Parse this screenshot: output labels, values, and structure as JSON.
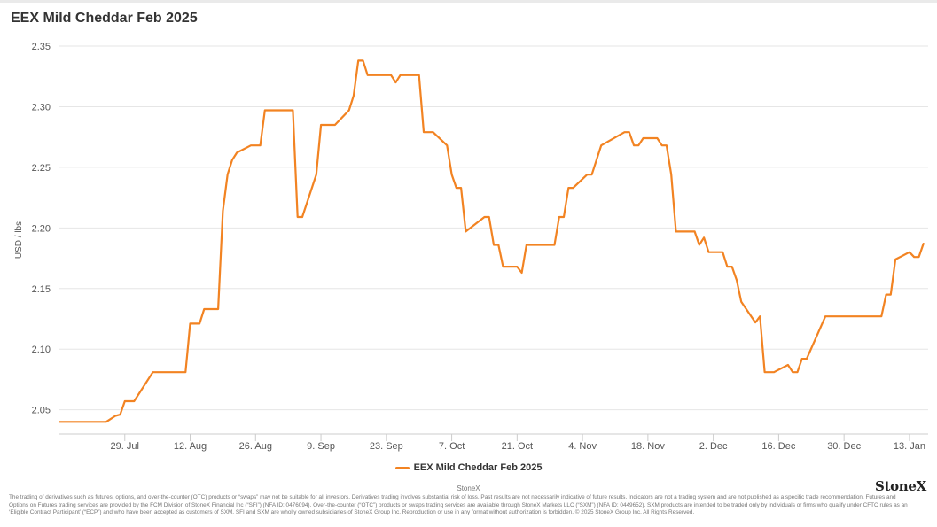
{
  "header": {
    "title": "EEX Mild Cheddar Feb 2025"
  },
  "chart_data": {
    "type": "line",
    "title": "EEX Mild Cheddar Feb 2025",
    "ylabel": "USD / lbs",
    "xlabel": "",
    "ylim": [
      2.03,
      2.35
    ],
    "xlim": [
      "2024-07-15",
      "2025-01-17"
    ],
    "y_ticks": [
      2.05,
      2.1,
      2.15,
      2.2,
      2.25,
      2.3,
      2.35
    ],
    "x_ticks": [
      {
        "date": "2024-07-29",
        "label": "29. Jul"
      },
      {
        "date": "2024-08-12",
        "label": "12. Aug"
      },
      {
        "date": "2024-08-26",
        "label": "26. Aug"
      },
      {
        "date": "2024-09-09",
        "label": "9. Sep"
      },
      {
        "date": "2024-09-23",
        "label": "23. Sep"
      },
      {
        "date": "2024-10-07",
        "label": "7. Oct"
      },
      {
        "date": "2024-10-21",
        "label": "21. Oct"
      },
      {
        "date": "2024-11-04",
        "label": "4. Nov"
      },
      {
        "date": "2024-11-18",
        "label": "18. Nov"
      },
      {
        "date": "2024-12-02",
        "label": "2. Dec"
      },
      {
        "date": "2024-12-16",
        "label": "16. Dec"
      },
      {
        "date": "2024-12-30",
        "label": "30. Dec"
      },
      {
        "date": "2025-01-13",
        "label": "13. Jan"
      }
    ],
    "grid": true,
    "legend": "bottom-center",
    "series": [
      {
        "name": "EEX Mild Cheddar Feb 2025",
        "color": "#f28322",
        "points": [
          [
            "2024-07-15",
            2.04
          ],
          [
            "2024-07-25",
            2.04
          ],
          [
            "2024-07-27",
            2.045
          ],
          [
            "2024-07-28",
            2.046
          ],
          [
            "2024-07-29",
            2.057
          ],
          [
            "2024-07-30",
            2.057
          ],
          [
            "2024-07-31",
            2.057
          ],
          [
            "2024-08-04",
            2.081
          ],
          [
            "2024-08-11",
            2.081
          ],
          [
            "2024-08-12",
            2.121
          ],
          [
            "2024-08-14",
            2.121
          ],
          [
            "2024-08-15",
            2.133
          ],
          [
            "2024-08-18",
            2.133
          ],
          [
            "2024-08-19",
            2.214
          ],
          [
            "2024-08-20",
            2.244
          ],
          [
            "2024-08-21",
            2.256
          ],
          [
            "2024-08-22",
            2.262
          ],
          [
            "2024-08-25",
            2.268
          ],
          [
            "2024-08-27",
            2.268
          ],
          [
            "2024-08-28",
            2.297
          ],
          [
            "2024-09-03",
            2.297
          ],
          [
            "2024-09-04",
            2.209
          ],
          [
            "2024-09-05",
            2.209
          ],
          [
            "2024-09-08",
            2.244
          ],
          [
            "2024-09-09",
            2.285
          ],
          [
            "2024-09-12",
            2.285
          ],
          [
            "2024-09-15",
            2.297
          ],
          [
            "2024-09-16",
            2.309
          ],
          [
            "2024-09-17",
            2.338
          ],
          [
            "2024-09-18",
            2.338
          ],
          [
            "2024-09-19",
            2.326
          ],
          [
            "2024-09-24",
            2.326
          ],
          [
            "2024-09-25",
            2.32
          ],
          [
            "2024-09-26",
            2.326
          ],
          [
            "2024-09-30",
            2.326
          ],
          [
            "2024-10-01",
            2.279
          ],
          [
            "2024-10-03",
            2.279
          ],
          [
            "2024-10-06",
            2.268
          ],
          [
            "2024-10-07",
            2.244
          ],
          [
            "2024-10-08",
            2.233
          ],
          [
            "2024-10-09",
            2.233
          ],
          [
            "2024-10-10",
            2.197
          ],
          [
            "2024-10-14",
            2.209
          ],
          [
            "2024-10-15",
            2.209
          ],
          [
            "2024-10-16",
            2.186
          ],
          [
            "2024-10-17",
            2.186
          ],
          [
            "2024-10-18",
            2.168
          ],
          [
            "2024-10-21",
            2.168
          ],
          [
            "2024-10-22",
            2.163
          ],
          [
            "2024-10-23",
            2.186
          ],
          [
            "2024-10-29",
            2.186
          ],
          [
            "2024-10-30",
            2.209
          ],
          [
            "2024-10-31",
            2.209
          ],
          [
            "2024-11-01",
            2.233
          ],
          [
            "2024-11-02",
            2.233
          ],
          [
            "2024-11-05",
            2.244
          ],
          [
            "2024-11-06",
            2.244
          ],
          [
            "2024-11-08",
            2.268
          ],
          [
            "2024-11-13",
            2.279
          ],
          [
            "2024-11-14",
            2.279
          ],
          [
            "2024-11-15",
            2.268
          ],
          [
            "2024-11-16",
            2.268
          ],
          [
            "2024-11-17",
            2.274
          ],
          [
            "2024-11-20",
            2.274
          ],
          [
            "2024-11-21",
            2.268
          ],
          [
            "2024-11-22",
            2.268
          ],
          [
            "2024-11-23",
            2.244
          ],
          [
            "2024-11-24",
            2.197
          ],
          [
            "2024-11-28",
            2.197
          ],
          [
            "2024-11-29",
            2.186
          ],
          [
            "2024-11-30",
            2.192
          ],
          [
            "2024-12-01",
            2.18
          ],
          [
            "2024-12-04",
            2.18
          ],
          [
            "2024-12-05",
            2.168
          ],
          [
            "2024-12-06",
            2.168
          ],
          [
            "2024-12-07",
            2.157
          ],
          [
            "2024-12-08",
            2.139
          ],
          [
            "2024-12-11",
            2.122
          ],
          [
            "2024-12-12",
            2.127
          ],
          [
            "2024-12-13",
            2.081
          ],
          [
            "2024-12-15",
            2.081
          ],
          [
            "2024-12-18",
            2.087
          ],
          [
            "2024-12-19",
            2.081
          ],
          [
            "2024-12-20",
            2.081
          ],
          [
            "2024-12-21",
            2.092
          ],
          [
            "2024-12-22",
            2.092
          ],
          [
            "2024-12-26",
            2.127
          ],
          [
            "2025-01-07",
            2.127
          ],
          [
            "2025-01-08",
            2.145
          ],
          [
            "2025-01-09",
            2.145
          ],
          [
            "2025-01-10",
            2.174
          ],
          [
            "2025-01-13",
            2.18
          ],
          [
            "2025-01-14",
            2.176
          ],
          [
            "2025-01-15",
            2.176
          ],
          [
            "2025-01-16",
            2.187
          ]
        ]
      }
    ]
  },
  "legend": {
    "label": "EEX Mild Cheddar Feb 2025"
  },
  "footer": {
    "credit": "StoneX",
    "logo": "StoneX",
    "disclaimer": "The trading of derivatives such as futures, options, and over-the-counter (OTC) products or “swaps” may not be suitable for all investors. Derivatives trading involves substantial risk of loss. Past results are not necessarily indicative of future results. Indicators are not a trading system and are not published as a specific trade recommendation. Futures and Options on Futures trading services are provided by the FCM Division of StoneX Financial Inc (“SFI”) (NFA ID: 0476094). Over-the-counter (“OTC”) products or swaps trading services are available through StoneX Markets LLC (“SXM”) (NFA ID: 0449652). SXM products are intended to be traded only by individuals or firms who qualify under CFTC rules as an ‘Eligible Contract Participant’ (“ECP”) and who have been accepted as customers of SXM. SFI and SXM are wholly owned subsidiaries of StoneX Group Inc. Reproduction or use in any format without authorization is forbidden. © 2025 StoneX Group Inc. All Rights Reserved."
  }
}
